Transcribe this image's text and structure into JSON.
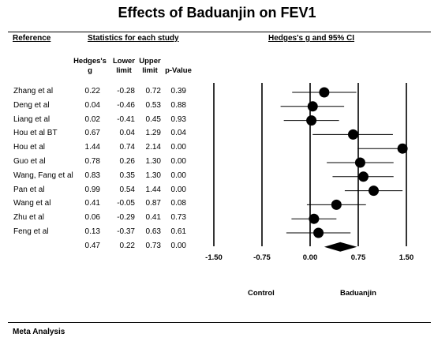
{
  "chart_data": {
    "type": "forest",
    "title": "Effects of Baduanjin on FEV1",
    "columns": {
      "reference": "Reference",
      "stats_group": "Statistics for each study",
      "plot_group": "Hedges's g and 95% CI",
      "g": [
        "Hedges's",
        "g"
      ],
      "lower": [
        "Lower",
        "limit"
      ],
      "upper": [
        "Upper",
        "limit"
      ],
      "p": [
        "p-Value"
      ]
    },
    "studies": [
      {
        "name": "Zhang et al",
        "g": "0.22",
        "lower": "-0.28",
        "upper": "0.72",
        "p": "0.39"
      },
      {
        "name": "Deng et al",
        "g": "0.04",
        "lower": "-0.46",
        "upper": "0.53",
        "p": "0.88"
      },
      {
        "name": "Liang et al",
        "g": "0.02",
        "lower": "-0.41",
        "upper": "0.45",
        "p": "0.93"
      },
      {
        "name": "Hou et al  BT",
        "g": "0.67",
        "lower": "0.04",
        "upper": "1.29",
        "p": "0.04"
      },
      {
        "name": "Hou et al",
        "g": "1.44",
        "lower": "0.74",
        "upper": "2.14",
        "p": "0.00"
      },
      {
        "name": "Guo et al",
        "g": "0.78",
        "lower": "0.26",
        "upper": "1.30",
        "p": "0.00"
      },
      {
        "name": "Wang, Fang et al",
        "g": "0.83",
        "lower": "0.35",
        "upper": "1.30",
        "p": "0.00"
      },
      {
        "name": "Pan et al",
        "g": "0.99",
        "lower": "0.54",
        "upper": "1.44",
        "p": "0.00"
      },
      {
        "name": "Wang et al",
        "g": "0.41",
        "lower": "-0.05",
        "upper": "0.87",
        "p": "0.08"
      },
      {
        "name": "Zhu et al",
        "g": "0.06",
        "lower": "-0.29",
        "upper": "0.41",
        "p": "0.73"
      },
      {
        "name": "Feng et al",
        "g": "0.13",
        "lower": "-0.37",
        "upper": "0.63",
        "p": "0.61"
      }
    ],
    "summary": {
      "g": "0.47",
      "lower": "0.22",
      "upper": "0.73",
      "p": "0.00"
    },
    "x_ticks": [
      "-1.50",
      "-0.75",
      "0.00",
      "0.75",
      "1.50"
    ],
    "xlim": [
      -1.5,
      1.5
    ],
    "left_label": "Control",
    "right_label": "Baduanjin",
    "footer": "Meta Analysis"
  },
  "colors": {
    "ink": "#000000",
    "background": "#ffffff"
  }
}
